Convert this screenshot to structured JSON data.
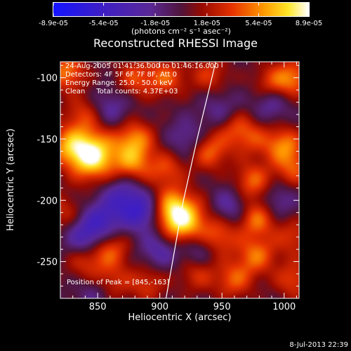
{
  "colorbar": {
    "tick_labels": [
      "-8.9e-05",
      "-5.4e-05",
      "-1.8e-05",
      "1.8e-05",
      "5.4e-05",
      "8.9e-05"
    ],
    "tick_values": [
      -8.9e-05,
      -5.4e-05,
      -1.8e-05,
      1.8e-05,
      5.4e-05,
      8.9e-05
    ],
    "range": [
      -8.9e-05,
      8.9e-05
    ],
    "units_label": "(photons cm⁻² s⁻¹ asec⁻²)"
  },
  "chart_data": {
    "type": "heatmap",
    "title": "Reconstructed RHESSI Image",
    "xlabel": "Heliocentric X (arcsec)",
    "ylabel": "Heliocentric Y (arcsec)",
    "xlim": [
      820,
      1012
    ],
    "ylim": [
      -280,
      -87
    ],
    "xticks": [
      850,
      900,
      950,
      1000
    ],
    "yticks": [
      -100,
      -150,
      -200,
      -250
    ],
    "annotations": [
      "24-Aug-2005 01:41:36.000 to 01:46:16.000",
      "Detectors: 4F 5F 6F 7F 8F, Att 0",
      "Energy Range: 25.0 - 50.0 keV",
      "Clean     Total counts: 4.37E+03"
    ],
    "peak_label": "Position of Peak = [845,-163]",
    "peak": {
      "x": 845,
      "y": -163
    },
    "limb_curve": [
      [
        945,
        -87
      ],
      [
        930,
        -150
      ],
      [
        919,
        -200
      ],
      [
        912,
        -240
      ],
      [
        905,
        -280
      ]
    ],
    "blobs": [
      {
        "x": 845,
        "y": -163,
        "v": 1.0
      },
      {
        "x": 825,
        "y": -95,
        "v": 0.55
      },
      {
        "x": 825,
        "y": -155,
        "v": 0.45
      },
      {
        "x": 838,
        "y": -130,
        "v": 0.35
      },
      {
        "x": 880,
        "y": -100,
        "v": 0.4
      },
      {
        "x": 905,
        "y": -100,
        "v": 0.45
      },
      {
        "x": 940,
        "y": -97,
        "v": 0.35
      },
      {
        "x": 990,
        "y": -105,
        "v": 0.4
      },
      {
        "x": 1008,
        "y": -100,
        "v": 0.5
      },
      {
        "x": 880,
        "y": -150,
        "v": 0.55
      },
      {
        "x": 878,
        "y": -170,
        "v": 0.5
      },
      {
        "x": 905,
        "y": -175,
        "v": 0.4
      },
      {
        "x": 910,
        "y": -205,
        "v": 0.45
      },
      {
        "x": 918,
        "y": -218,
        "v": 0.85
      },
      {
        "x": 940,
        "y": -160,
        "v": 0.5
      },
      {
        "x": 960,
        "y": -140,
        "v": 0.4
      },
      {
        "x": 975,
        "y": -150,
        "v": 0.3
      },
      {
        "x": 1000,
        "y": -155,
        "v": 0.55
      },
      {
        "x": 1008,
        "y": -175,
        "v": 0.4
      },
      {
        "x": 975,
        "y": -185,
        "v": 0.5
      },
      {
        "x": 978,
        "y": -215,
        "v": 0.55
      },
      {
        "x": 978,
        "y": -245,
        "v": 0.5
      },
      {
        "x": 948,
        "y": -230,
        "v": 0.45
      },
      {
        "x": 1008,
        "y": -230,
        "v": 0.35
      },
      {
        "x": 1008,
        "y": -265,
        "v": 0.4
      },
      {
        "x": 960,
        "y": -265,
        "v": 0.45
      },
      {
        "x": 930,
        "y": -260,
        "v": 0.35
      },
      {
        "x": 860,
        "y": -240,
        "v": 0.45
      },
      {
        "x": 860,
        "y": -268,
        "v": 0.4
      },
      {
        "x": 840,
        "y": -250,
        "v": 0.35
      },
      {
        "x": 890,
        "y": -268,
        "v": 0.35
      },
      {
        "x": 822,
        "y": -210,
        "v": 0.3
      },
      {
        "x": 885,
        "y": -210,
        "v": -0.55
      },
      {
        "x": 855,
        "y": -215,
        "v": -0.45
      },
      {
        "x": 840,
        "y": -230,
        "v": -0.5
      },
      {
        "x": 900,
        "y": -240,
        "v": -0.4
      },
      {
        "x": 870,
        "y": -195,
        "v": -0.4
      },
      {
        "x": 958,
        "y": -205,
        "v": -0.35
      },
      {
        "x": 930,
        "y": -240,
        "v": -0.35
      },
      {
        "x": 990,
        "y": -120,
        "v": -0.35
      },
      {
        "x": 860,
        "y": -125,
        "v": -0.3
      },
      {
        "x": 950,
        "y": -128,
        "v": -0.3
      },
      {
        "x": 922,
        "y": -150,
        "v": -0.3
      },
      {
        "x": 995,
        "y": -200,
        "v": -0.3
      },
      {
        "x": 850,
        "y": -275,
        "v": -0.3
      }
    ]
  },
  "footer": {
    "timestamp": "8-Jul-2013 22:39"
  }
}
